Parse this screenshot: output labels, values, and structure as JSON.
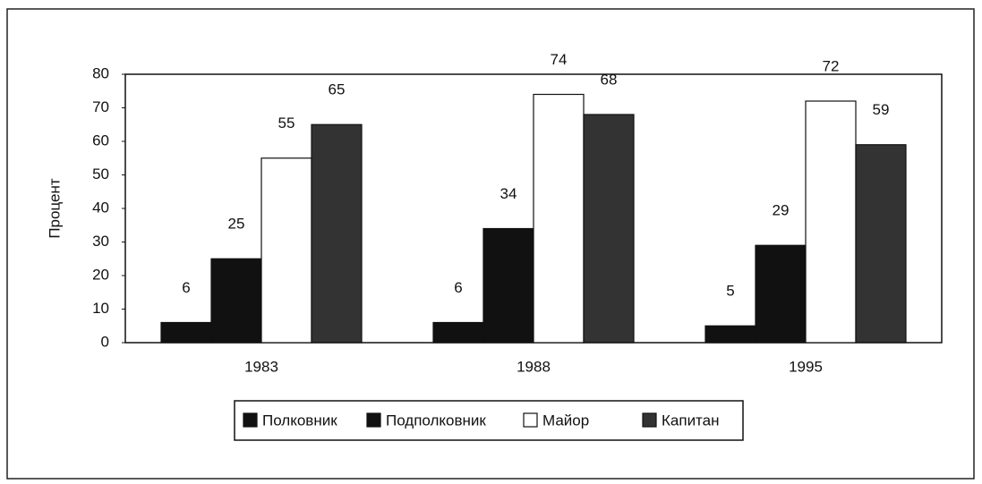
{
  "chart_data": {
    "type": "bar",
    "ylabel": "Процент",
    "categories": [
      "1983",
      "1988",
      "1995"
    ],
    "series": [
      {
        "name": "Полковник",
        "color": "#111111",
        "values": [
          6,
          6,
          5
        ]
      },
      {
        "name": "Подполковник",
        "color": "#111111",
        "values": [
          25,
          34,
          29
        ]
      },
      {
        "name": "Майор",
        "color": "#ffffff",
        "values": [
          55,
          74,
          72
        ]
      },
      {
        "name": "Капитан",
        "color": "#333333",
        "values": [
          65,
          68,
          59
        ]
      }
    ],
    "ylim": [
      0,
      80
    ],
    "yticks": [
      0,
      10,
      20,
      30,
      40,
      50,
      60,
      70,
      80
    ],
    "grid": false,
    "legend": "bottom",
    "value_labels_shown": true
  }
}
